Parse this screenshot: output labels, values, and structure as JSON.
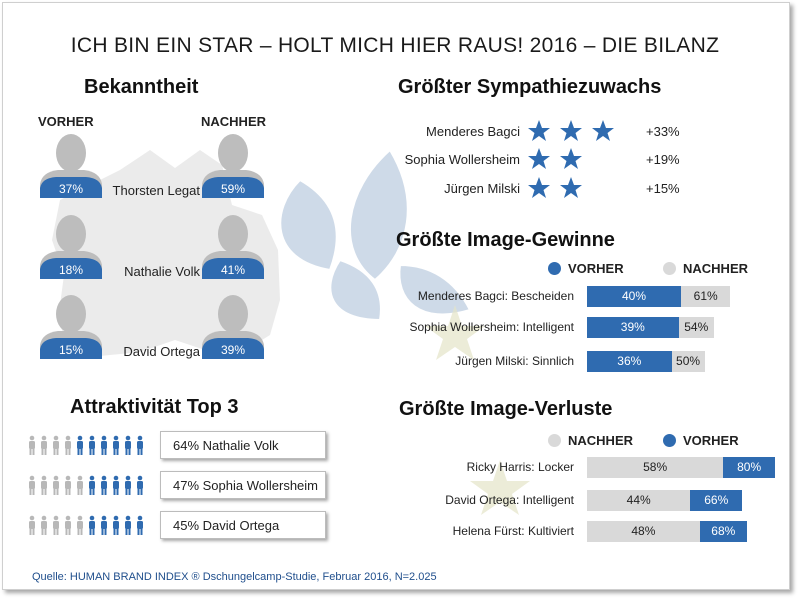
{
  "title": "ICH BIN EIN STAR – HOLT MICH HIER RAUS! 2016 – DIE BILANZ",
  "colors": {
    "blue": "#2f6bb0",
    "grey": "#d9d9d9",
    "star": "#2f6bb0"
  },
  "bekanntheit": {
    "heading": "Bekanntheit",
    "before_label": "VORHER",
    "after_label": "NACHHER",
    "people": [
      {
        "name": "Thorsten  Legat",
        "before": "37%",
        "after": "59%"
      },
      {
        "name": "Nathalie  Volk",
        "before": "18%",
        "after": "41%"
      },
      {
        "name": "David  Ortega",
        "before": "15%",
        "after": "39%"
      }
    ]
  },
  "attraktivitaet": {
    "heading": "Attraktivität Top 3",
    "items": [
      {
        "label": "64% Nathalie  Volk",
        "value": 64
      },
      {
        "label": "47% Sophia Wollersheim",
        "value": 47
      },
      {
        "label": "45% David Ortega",
        "value": 45
      }
    ]
  },
  "sympathie": {
    "heading": "Größter Sympathiezuwachs",
    "items": [
      {
        "name": "Menderes Bagci",
        "stars": 3,
        "value": "+33%"
      },
      {
        "name": "Sophia Wollersheim",
        "stars": 2,
        "value": "+19%"
      },
      {
        "name": "Jürgen  Milski",
        "stars": 2,
        "value": "+15%"
      }
    ]
  },
  "gewinne": {
    "heading": "Größte Image-Gewinne",
    "legend_before": "VORHER",
    "legend_after": "NACHHER"
  },
  "verluste": {
    "heading": "Größte Image-Verluste",
    "legend_after": "NACHHER",
    "legend_before": "VORHER"
  },
  "source": "Quelle:  HUMAN  BRAND  INDEX  ® Dschungelcamp-Studie,  Februar  2016,  N=2.025",
  "chart_data": [
    {
      "type": "bar",
      "title": "Größte Image-Gewinne",
      "categories": [
        "Menderes Bagci: Bescheiden",
        "Sophia Wollersheim: Intelligent",
        "Jürgen  Milski: Sinnlich"
      ],
      "series": [
        {
          "name": "VORHER",
          "values": [
            40,
            39,
            36
          ],
          "labels": [
            "40%",
            "39%",
            "36%"
          ]
        },
        {
          "name": "NACHHER",
          "values": [
            61,
            54,
            50
          ],
          "labels": [
            "61%",
            "54%",
            "50%"
          ]
        }
      ]
    },
    {
      "type": "bar",
      "title": "Größte Image-Verluste",
      "categories": [
        "Ricky  Harris:  Locker",
        "David  Ortega:  Intelligent",
        "Helena  Fürst:  Kultiviert"
      ],
      "series": [
        {
          "name": "NACHHER",
          "values": [
            58,
            44,
            48
          ],
          "labels": [
            "58%",
            "44%",
            "48%"
          ]
        },
        {
          "name": "VORHER",
          "values": [
            80,
            66,
            68
          ],
          "labels": [
            "80%",
            "66%",
            "68%"
          ]
        }
      ]
    }
  ]
}
